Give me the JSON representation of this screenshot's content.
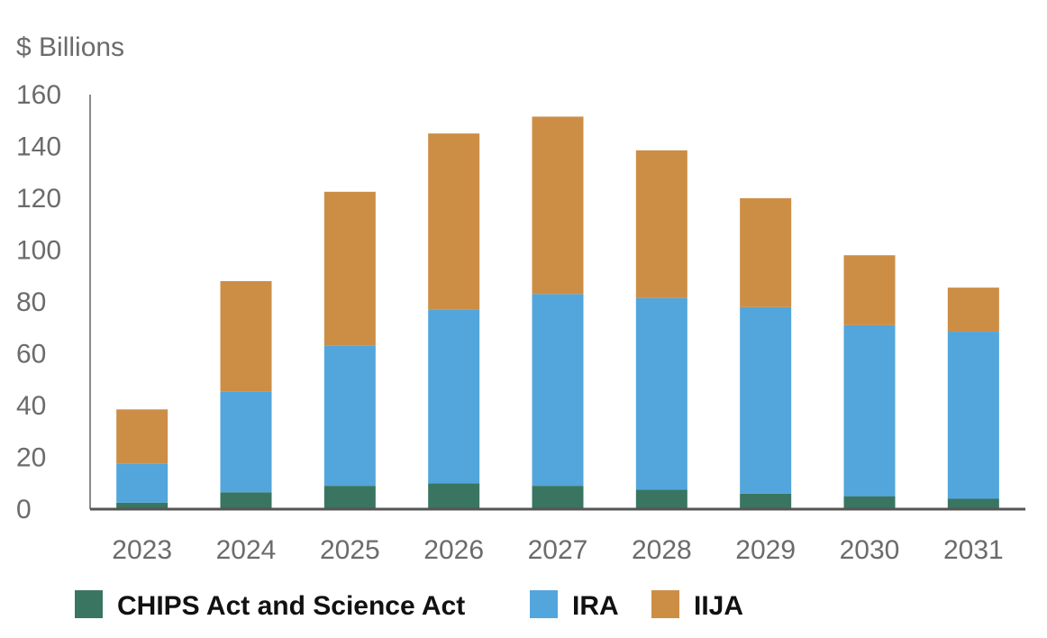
{
  "chart_data": {
    "type": "bar",
    "stacked": true,
    "ylabel": "$ Billions",
    "xlabel": "",
    "ylim": [
      0,
      160
    ],
    "yticks": [
      0,
      20,
      40,
      60,
      80,
      100,
      120,
      140,
      160
    ],
    "grid": false,
    "legend": "bottom",
    "categories": [
      "2023",
      "2024",
      "2025",
      "2026",
      "2027",
      "2028",
      "2029",
      "2030",
      "2031"
    ],
    "series": [
      {
        "name": "CHIPS Act and Science Act",
        "color": "#3a7561",
        "values": [
          2.5,
          6.5,
          9,
          10,
          9,
          7.5,
          6,
          5,
          4
        ]
      },
      {
        "name": "IRA",
        "color": "#52a6dc",
        "values": [
          15,
          39,
          54,
          67,
          74,
          74,
          72,
          66,
          64.5
        ]
      },
      {
        "name": "IIJA",
        "color": "#cc8e45",
        "values": [
          21,
          42.5,
          59.5,
          68,
          68.5,
          57,
          42,
          27,
          17
        ]
      }
    ]
  }
}
